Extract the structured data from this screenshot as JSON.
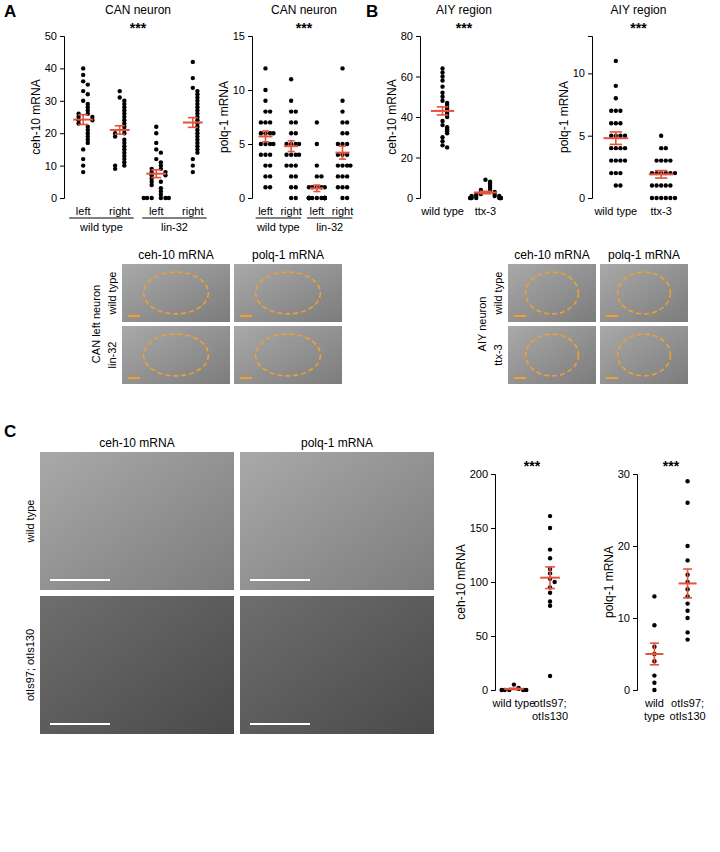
{
  "chart_data": [
    {
      "type": "scatter",
      "title": "CAN neuron",
      "y_label": "ceh-10 mRNA",
      "categories": [
        "left",
        "right",
        "left",
        "right"
      ],
      "groups": [
        "wild type",
        "lin-32"
      ],
      "values": [
        [
          40,
          38,
          36,
          35,
          33,
          32,
          30,
          29,
          28,
          27,
          26,
          26,
          25,
          25,
          24,
          24,
          23,
          22,
          21,
          20,
          19,
          18,
          17,
          15,
          12,
          10,
          8
        ],
        [
          33,
          31,
          30,
          29,
          28,
          27,
          26,
          25,
          24,
          23,
          22,
          21,
          20,
          20,
          19,
          18,
          17,
          16,
          15,
          14,
          13,
          12,
          11,
          10,
          10,
          9
        ],
        [
          22,
          20,
          17,
          15,
          14,
          12,
          11,
          10,
          9,
          9,
          8,
          8,
          7,
          7,
          6,
          5,
          5,
          4,
          3,
          2,
          1,
          0,
          0,
          0,
          0,
          0,
          0
        ],
        [
          42,
          37,
          34,
          33,
          32,
          31,
          30,
          29,
          28,
          27,
          26,
          25,
          24,
          23,
          22,
          21,
          20,
          19,
          18,
          17,
          16,
          15,
          14,
          12,
          10,
          8
        ]
      ],
      "means": [
        24.2,
        21.0,
        7.5,
        23.3
      ],
      "errors": [
        1.5,
        1.3,
        1.2,
        1.5
      ],
      "ylim": [
        0,
        50
      ],
      "yticks": [
        0,
        10,
        20,
        30,
        40,
        50
      ],
      "annotation": "***",
      "color": "#000000"
    },
    {
      "type": "scatter",
      "title": "CAN neuron",
      "y_label": "polq-1 mRNA",
      "categories": [
        "left",
        "right",
        "left",
        "right"
      ],
      "groups": [
        "wild type",
        "lin-32"
      ],
      "values": [
        [
          12,
          10,
          9,
          8,
          8,
          7,
          7,
          7,
          6,
          6,
          6,
          6,
          5,
          5,
          5,
          5,
          4,
          4,
          4,
          3,
          3,
          2,
          2,
          1,
          1
        ],
        [
          11,
          9,
          8,
          8,
          7,
          7,
          6,
          6,
          5,
          5,
          5,
          5,
          4,
          4,
          4,
          4,
          3,
          3,
          3,
          2,
          2,
          1,
          1,
          0,
          0
        ],
        [
          7,
          5,
          3,
          2,
          2,
          1,
          1,
          1,
          1,
          1,
          0,
          0,
          0,
          0,
          0,
          0,
          0,
          0,
          0,
          0,
          0,
          0,
          0,
          0,
          0
        ],
        [
          12,
          9,
          8,
          7,
          7,
          6,
          6,
          5,
          5,
          5,
          4,
          4,
          4,
          3,
          3,
          3,
          3,
          2,
          2,
          2,
          1,
          1,
          1,
          0,
          0
        ]
      ],
      "means": [
        5.7,
        4.8,
        0.9,
        4.2
      ],
      "errors": [
        0.5,
        0.5,
        0.3,
        0.6
      ],
      "ylim": [
        0,
        15
      ],
      "yticks": [
        0,
        5,
        10,
        15
      ],
      "annotation": "***",
      "color": "#000000"
    },
    {
      "type": "scatter",
      "title": "AIY region",
      "y_label": "ceh-10 mRNA",
      "categories": [
        "wild type",
        "ttx-3"
      ],
      "values": [
        [
          64,
          62,
          60,
          58,
          55,
          52,
          50,
          48,
          47,
          46,
          45,
          44,
          43,
          42,
          41,
          40,
          38,
          36,
          35,
          34,
          33,
          32,
          30,
          28,
          26,
          25
        ],
        [
          9,
          8,
          7,
          6,
          5,
          4,
          4,
          3,
          3,
          2,
          2,
          2,
          1,
          1,
          1,
          1,
          0,
          0,
          0,
          0,
          0,
          0,
          0,
          0
        ]
      ],
      "means": [
        43.0,
        2.7
      ],
      "errors": [
        2.0,
        0.6
      ],
      "ylim": [
        0,
        80
      ],
      "yticks": [
        0,
        20,
        40,
        60,
        80
      ],
      "annotation": "***",
      "color": "#000000"
    },
    {
      "type": "scatter",
      "title": "AIY region",
      "y_label": "polq-1 mRNA",
      "categories": [
        "wild type",
        "ttx-3"
      ],
      "values": [
        [
          11,
          9,
          8,
          7,
          7,
          7,
          6,
          6,
          6,
          5,
          5,
          5,
          5,
          4,
          4,
          4,
          4,
          3,
          3,
          3,
          3,
          2,
          2,
          2,
          1,
          1
        ],
        [
          5,
          4,
          4,
          3,
          3,
          3,
          3,
          2,
          2,
          2,
          2,
          2,
          2,
          1,
          1,
          1,
          1,
          1,
          0,
          0,
          0,
          0,
          0,
          0
        ]
      ],
      "means": [
        4.8,
        1.9
      ],
      "errors": [
        0.5,
        0.3
      ],
      "ylim": [
        0,
        13
      ],
      "yticks": [
        0,
        5,
        10
      ],
      "annotation": "***",
      "color": "#000000"
    },
    {
      "type": "scatter",
      "y_label": "ceh-10 mRNA",
      "categories": [
        "wild type",
        "otIs97; otIs130"
      ],
      "values": [
        [
          5,
          2,
          1,
          0,
          0,
          0,
          0,
          0
        ],
        [
          161,
          150,
          130,
          122,
          112,
          108,
          103,
          100,
          95,
          90,
          82,
          78,
          13
        ]
      ],
      "means": [
        1.0,
        104.0
      ],
      "errors": [
        0.6,
        10.0
      ],
      "ylim": [
        0,
        200
      ],
      "yticks": [
        0,
        50,
        100,
        150,
        200
      ],
      "annotation": "***",
      "color": "#000000"
    },
    {
      "type": "scatter",
      "y_label": "polq-1 mRNA",
      "categories": [
        "wild type",
        "otIs97; otIs130"
      ],
      "values": [
        [
          13,
          9,
          6,
          5,
          4,
          2,
          1,
          0
        ],
        [
          29,
          26,
          20,
          18,
          16,
          15,
          14,
          13,
          12,
          11,
          10,
          8,
          7
        ]
      ],
      "means": [
        5.0,
        14.8
      ],
      "errors": [
        1.5,
        2.0
      ],
      "ylim": [
        0,
        30
      ],
      "yticks": [
        0,
        10,
        20,
        30
      ],
      "annotation": "***",
      "color": "#000000"
    }
  ],
  "panel_letters": [
    "A",
    "B",
    "C"
  ],
  "images": [
    {
      "columns": [
        "ceh-10 mRNA",
        "polq-1 mRNA"
      ],
      "rows": [
        "wild type",
        "lin-32"
      ],
      "side_label": "CAN left neuron"
    },
    {
      "columns": [
        "ceh-10 mRNA",
        "polq-1 mRNA"
      ],
      "rows": [
        "wild type",
        "ttx-3"
      ],
      "side_label": "AIY neuron"
    },
    {
      "columns": [
        "ceh-10 mRNA",
        "polq-1 mRNA"
      ],
      "rows": [
        "wild type",
        "otIs97; otIs130"
      ]
    }
  ]
}
